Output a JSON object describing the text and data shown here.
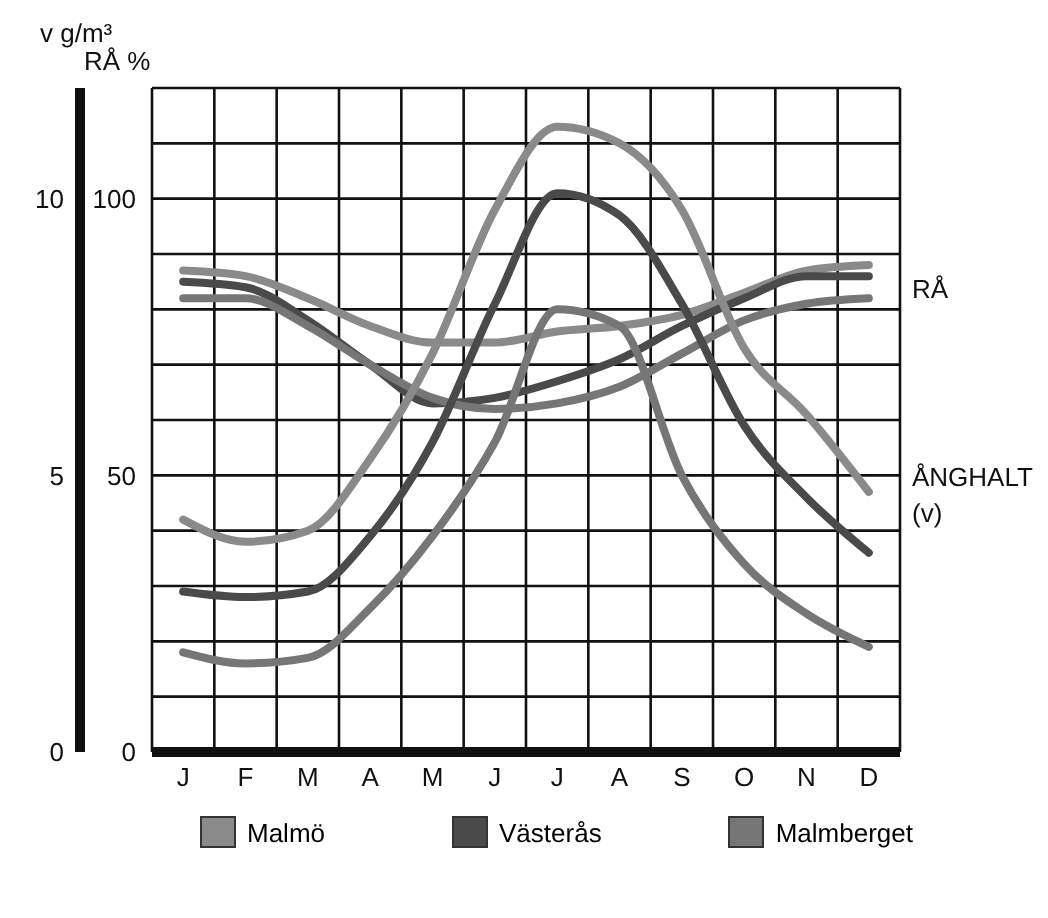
{
  "chart_data": {
    "type": "line",
    "ylabel": "RÅ %",
    "y2label": "v g/m³",
    "categories": [
      "J",
      "F",
      "M",
      "A",
      "M",
      "J",
      "J",
      "A",
      "S",
      "O",
      "N",
      "D"
    ],
    "ylim": [
      0,
      120
    ],
    "yticks": [
      0,
      {
        "value": 10,
        "label": null
      },
      {
        "value": 20,
        "label": null
      },
      {
        "value": 30,
        "label": null
      },
      {
        "value": 40,
        "label": null
      },
      50,
      {
        "value": 60,
        "label": null
      },
      {
        "value": 70,
        "label": null
      },
      {
        "value": 80,
        "label": null
      },
      {
        "value": 90,
        "label": null
      },
      100,
      {
        "value": 110,
        "label": null
      },
      {
        "value": 120,
        "label": null
      }
    ],
    "y2lim": [
      0,
      12
    ],
    "y2ticks": [
      0,
      5,
      10
    ],
    "series": [
      {
        "name": "Malmö",
        "color": "#8a8a8a",
        "values": [
          87,
          86,
          82,
          77,
          74,
          74,
          76,
          77,
          79,
          83,
          87,
          88
        ]
      },
      {
        "name": "Västerås",
        "color": "#4a4a4a",
        "values": [
          85,
          84,
          78,
          70,
          63,
          64,
          67,
          71,
          77,
          82,
          86,
          86
        ]
      },
      {
        "name": "Malmberget",
        "color": "#767676",
        "values": [
          82,
          82,
          77,
          70,
          64,
          62,
          63,
          66,
          72,
          78,
          81,
          82
        ]
      },
      {
        "color": "#8a8a8a",
        "axis": "y2",
        "values": [
          4.2,
          3.8,
          4.0,
          5.3,
          7.2,
          9.8,
          11.3,
          11.0,
          9.8,
          7.3,
          6.1,
          4.7
        ]
      },
      {
        "color": "#4a4a4a",
        "axis": "y2",
        "values": [
          2.9,
          2.8,
          2.9,
          3.9,
          5.6,
          8.1,
          10.1,
          9.7,
          8.1,
          5.9,
          4.6,
          3.6
        ]
      },
      {
        "color": "#767676",
        "axis": "y2",
        "values": [
          1.8,
          1.6,
          1.7,
          2.6,
          3.9,
          5.6,
          8.0,
          7.7,
          5.0,
          3.4,
          2.5,
          1.9
        ]
      }
    ],
    "annotations": [
      "RÅ",
      "ÅNGHALT\n(v)"
    ],
    "grid": true,
    "legend": "bottom",
    "marker": "none",
    "line_style": "solid"
  }
}
